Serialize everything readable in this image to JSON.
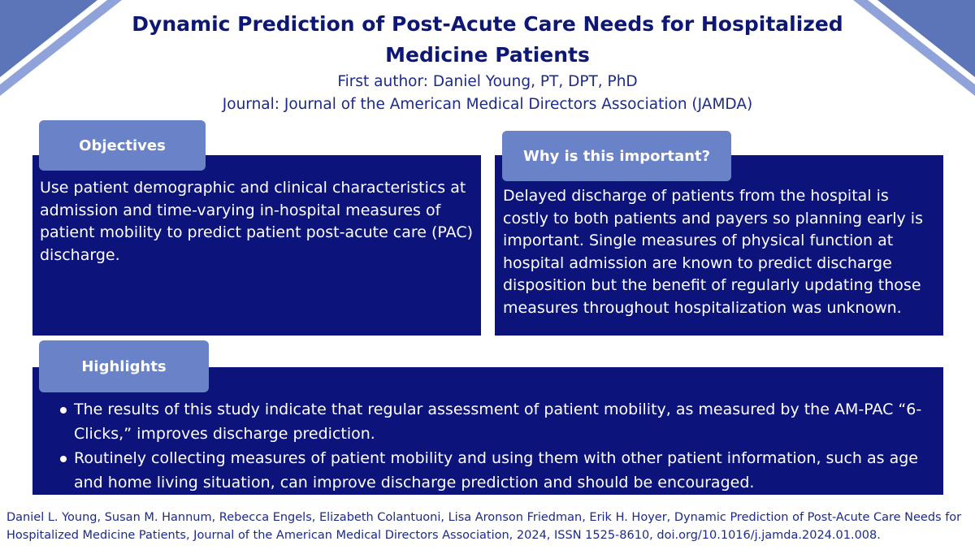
{
  "title": "Dynamic Prediction of Post-Acute Care Needs for Hospitalized Medicine Patients",
  "author": "First author: Daniel Young, PT, DPT, PhD",
  "journal": "Journal: Journal of the American Medical Directors Association (JAMDA)",
  "objectives": {
    "heading": "Objectives",
    "text": "Use patient demographic and clinical characteristics at admission and time-varying in-hospital measures of patient mobility to predict patient post-acute care (PAC) discharge."
  },
  "why": {
    "heading": "Why is this important?",
    "text": "Delayed discharge of patients from the hospital is costly to both patients and payers so planning early is important. Single measures of physical function at hospital admission are known to predict discharge disposition but the benefit of regularly updating those measures throughout hospitalization was unknown."
  },
  "highlights": {
    "heading": "Highlights",
    "items": [
      "The results of this study indicate that regular assessment of patient mobility, as measured by the AM-PAC “6-Clicks,” improves discharge prediction.",
      "Routinely collecting measures of patient mobility and using them with other patient information, such as age and home living situation, can improve discharge prediction and should be encouraged."
    ]
  },
  "citation": "Daniel L. Young, Susan M. Hannum, Rebecca Engels, Elizabeth Colantuoni, Lisa Aronson Friedman, Erik H. Hoyer, Dynamic Prediction of Post-Acute Care Needs for Hospitalized Medicine Patients, Journal of the American Medical Directors Association, 2024, ISSN 1525-8610, doi.org/10.1016/j.jamda.2024.01.008.",
  "colors": {
    "navy": "#0c137a",
    "tab": "#6a82c8",
    "corner_dark": "#5c74b8",
    "corner_light": "#8fa3da"
  }
}
